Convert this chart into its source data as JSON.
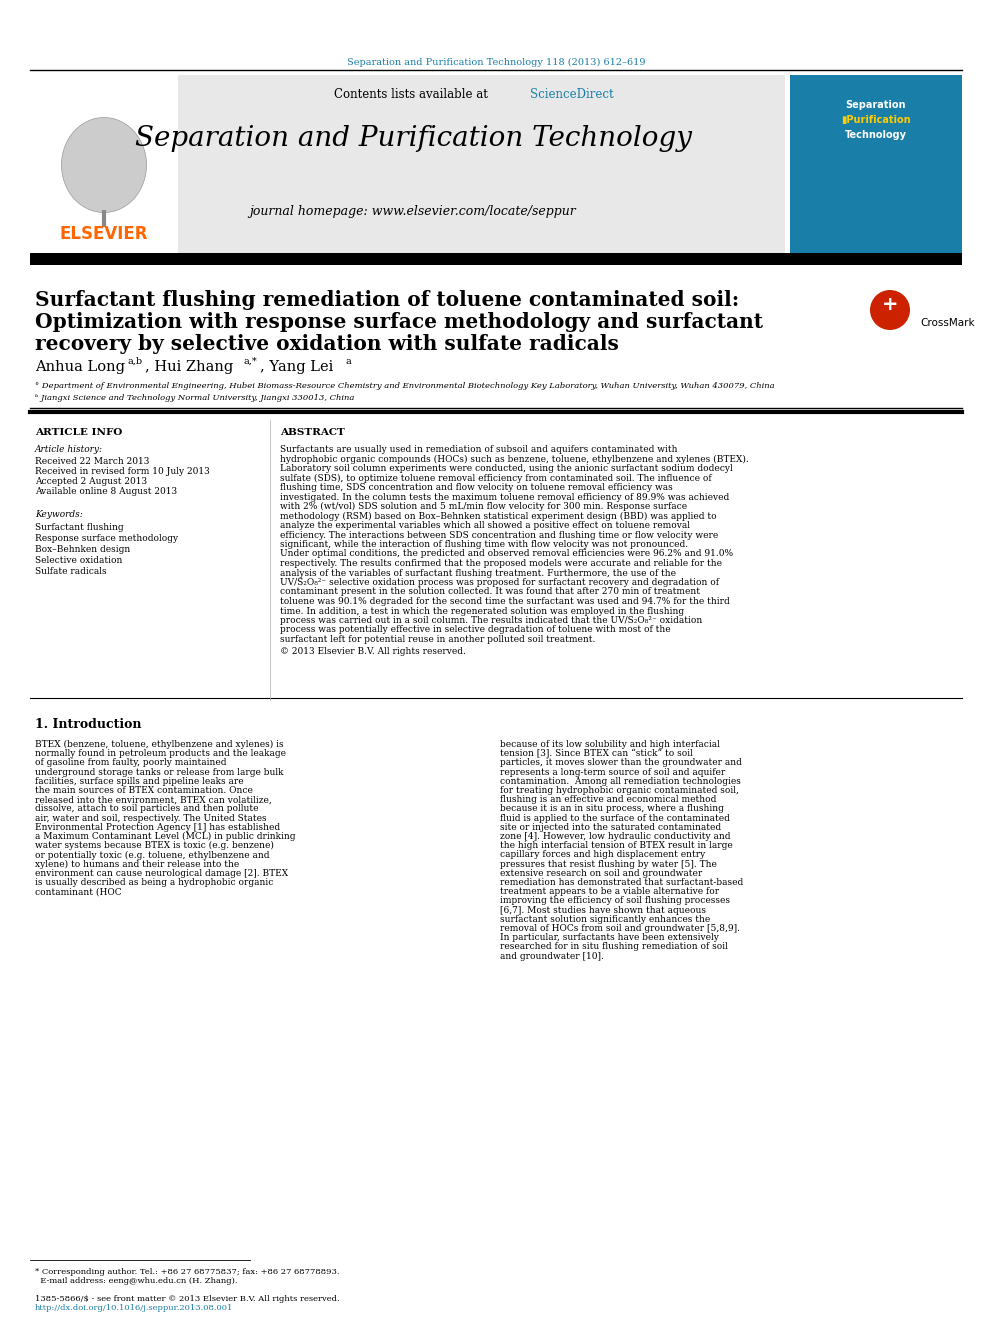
{
  "page_bg": "#ffffff",
  "top_citation": "Separation and Purification Technology 118 (2013) 612–619",
  "top_citation_color": "#1a7fa8",
  "journal_header_bg": "#e8e8e8",
  "journal_name": "Separation and Purification Technology",
  "journal_homepage": "journal homepage: www.elsevier.com/locate/seppur",
  "contents_line": "Contents lists available at",
  "science_direct": "ScienceDirect",
  "science_direct_color": "#1a7fa8",
  "elsevier_color": "#ff6600",
  "paper_title_line1": "Surfactant flushing remediation of toluene contaminated soil:",
  "paper_title_line2": "Optimization with response surface methodology and surfactant",
  "paper_title_line3": "recovery by selective oxidation with sulfate radicals",
  "authors": "Anhua Long",
  "authors2": ", Hui Zhang",
  "authors3": ", Yang Lei",
  "affil1": "° Department of Environmental Engineering, Hubei Biomass-Resource Chemistry and Environmental Biotechnology Key Laboratory, Wuhan University, Wuhan 430079, China",
  "affil2": "ᵇ Jiangxi Science and Technology Normal University, Jiangxi 330013, China",
  "article_info_title": "ARTICLE INFO",
  "abstract_title": "ABSTRACT",
  "article_history_title": "Article history:",
  "received": "Received 22 March 2013",
  "revised": "Received in revised form 10 July 2013",
  "accepted": "Accepted 2 August 2013",
  "available": "Available online 8 August 2013",
  "keywords_title": "Keywords:",
  "keywords": [
    "Surfactant flushing",
    "Response surface methodology",
    "Box–Behnken design",
    "Selective oxidation",
    "Sulfate radicals"
  ],
  "abstract_text": "Surfactants are usually used in remediation of subsoil and aquifers contaminated with hydrophobic organic compounds (HOCs) such as benzene, toluene, ethylbenzene and xylenes (BTEX). Laboratory soil column experiments were conducted, using the anionic surfactant sodium dodecyl sulfate (SDS), to optimize toluene removal efficiency from contaminated soil. The influence of flushing time, SDS concentration and flow velocity on toluene removal efficiency was investigated. In the column tests the maximum toluene removal efficiency of 89.9% was achieved with 2% (wt/vol) SDS solution and 5 mL/min flow velocity for 300 min. Response surface methodology (RSM) based on Box–Behnken statistical experiment design (BBD) was applied to analyze the experimental variables which all showed a positive effect on toluene removal efficiency. The interactions between SDS concentration and flushing time or flow velocity were significant, while the interaction of flushing time with flow velocity was not pronounced. Under optimal conditions, the predicted and observed removal efficiencies were 96.2% and 91.0% respectively. The results confirmed that the proposed models were accurate and reliable for the analysis of the variables of surfactant flushing treatment. Furthermore, the use of the UV/S₂O₈²⁻ selective oxidation process was proposed for surfactant recovery and degradation of contaminant present in the solution collected. It was found that after 270 min of treatment toluene was 90.1% degraded for the second time the surfactant was used and 94.7% for the third time. In addition, a test in which the regenerated solution was employed in the flushing process was carried out in a soil column. The results indicated that the UV/S₂O₈²⁻ oxidation process was potentially effective in selective degradation of toluene with most of the surfactant left for potential reuse in another polluted soil treatment.",
  "copyright": "© 2013 Elsevier B.V. All rights reserved.",
  "intro_title": "1. Introduction",
  "intro_col1": "BTEX (benzene, toluene, ethylbenzene and xylenes) is normally found in petroleum products and the leakage of gasoline from faulty, poorly maintained underground storage tanks or release from large bulk facilities, surface spills and pipeline leaks are the main sources of BTEX contamination. Once released into the environment, BTEX can volatilize, dissolve, attach to soil particles and then pollute air, water and soil, respectively. The United States Environmental Protection Agency [1] has established a Maximum Contaminant Level (MCL) in public drinking water systems because BTEX is toxic (e.g. benzene) or potentially toxic (e.g. toluene, ethylbenzene and xylene) to humans and their release into the environment can cause neurological damage [2]. BTEX is usually described as being a hydrophobic organic contaminant (HOC",
  "intro_col2": "because of its low solubility and high interfacial tension [3]. Since BTEX can “stick” to soil particles, it moves slower than the groundwater and represents a long-term source of soil and aquifer contamination.\n\nAmong all remediation technologies for treating hydrophobic organic contaminated soil, flushing is an effective and economical method because it is an in situ process, where a flushing fluid is applied to the surface of the contaminated site or injected into the saturated contaminated zone [4]. However, low hydraulic conductivity and the high interfacial tension of BTEX result in large capillary forces and high displacement entry pressures that resist flushing by water [5]. The extensive research on soil and groundwater remediation has demonstrated that surfactant-based treatment appears to be a viable alternative for improving the efficiency of soil flushing processes [6,7]. Most studies have shown that aqueous surfactant solution significantly enhances the removal of HOCs from soil and groundwater [5,8,9]. In particular, surfactants have been extensively researched for in situ flushing remediation of soil and groundwater [10].",
  "footnote": "* Corresponding author. Tel.: +86 27 68775837; fax: +86 27 68778893.\n  E-mail address: eeng@whu.edu.cn (H. Zhang).\n\n1385-5866/$ - see front matter © 2013 Elsevier B.V. All rights reserved.\nhttp://dx.doi.org/10.1016/j.seppur.2013.08.001"
}
